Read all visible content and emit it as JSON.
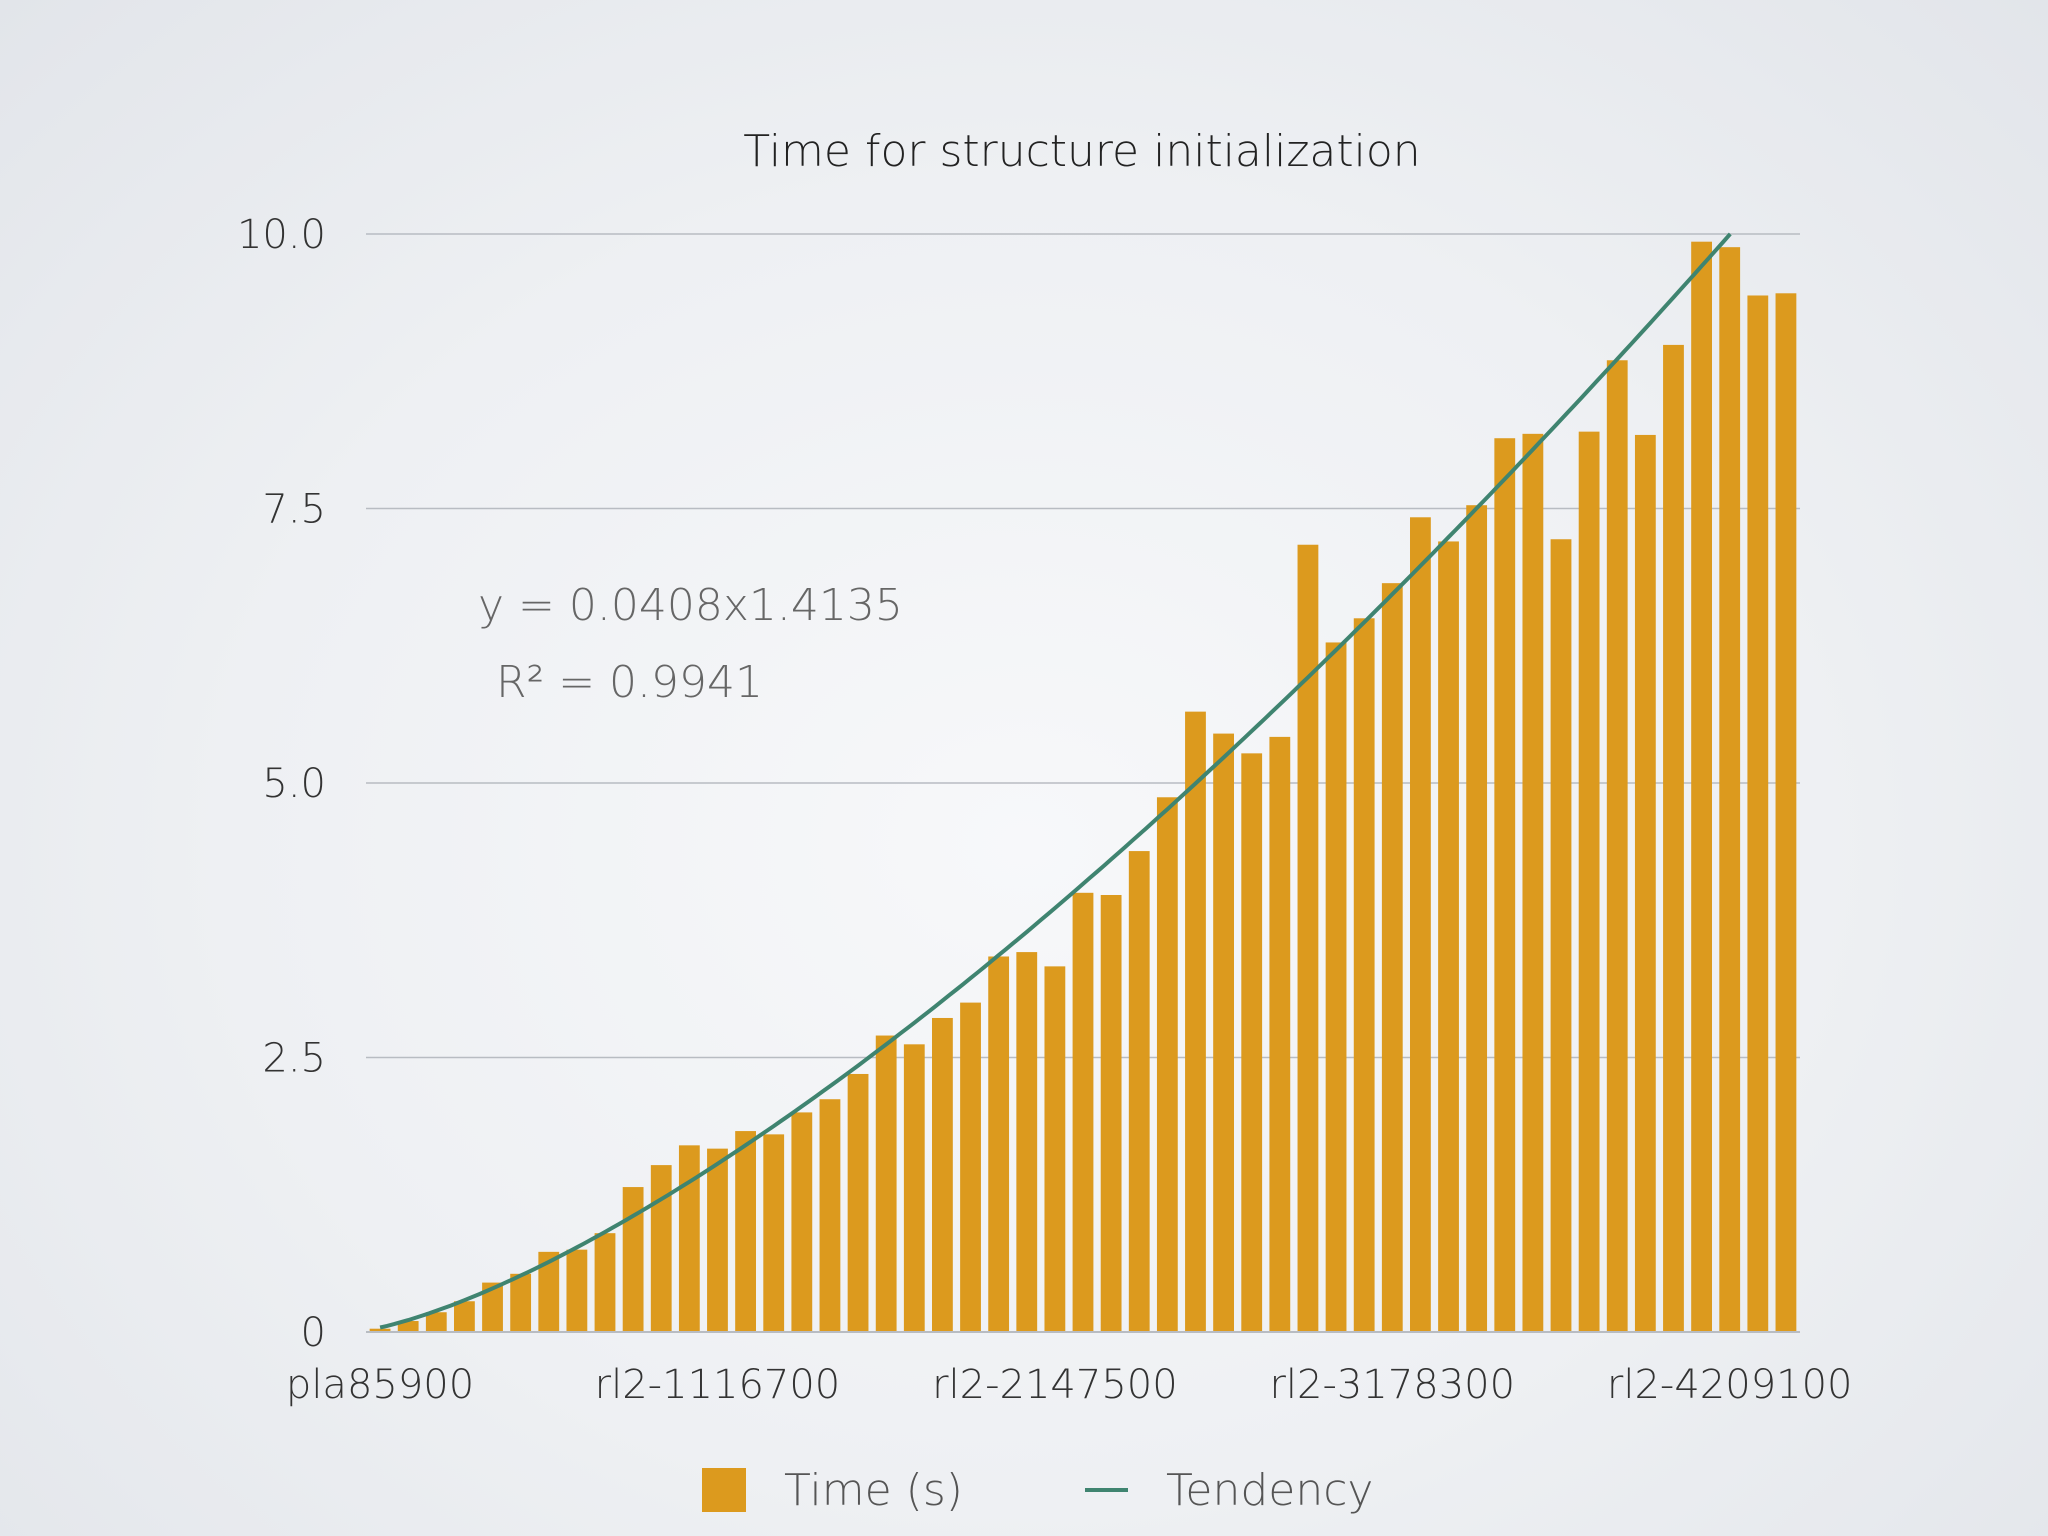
{
  "chart_data": {
    "type": "bar",
    "title": "Time for structure initialization",
    "xlabel": "",
    "ylabel": "",
    "ylim": [
      0,
      10
    ],
    "yticks": [
      0,
      2.5,
      5,
      7.5,
      10
    ],
    "ytick_labels": [
      "0",
      "2.5",
      "5.0",
      "7.5",
      "10.0"
    ],
    "xtick_labels": [
      "pla85900",
      "rl2-1116700",
      "rl2-2147500",
      "rl2-3178300",
      "rl2-4209100"
    ],
    "xtick_indices": [
      0,
      12,
      24,
      36,
      48
    ],
    "grid": true,
    "legend_placement": "bottom",
    "bar_color": "#DC9A1E",
    "line_color": "#3F8470",
    "series": [
      {
        "name": "Time (s)",
        "type": "bar",
        "values": [
          0.03,
          0.1,
          0.18,
          0.28,
          0.45,
          0.53,
          0.73,
          0.75,
          0.9,
          1.32,
          1.52,
          1.7,
          1.67,
          1.83,
          1.8,
          2.0,
          2.12,
          2.35,
          2.7,
          2.62,
          2.86,
          3.0,
          3.42,
          3.46,
          3.33,
          4.0,
          3.98,
          4.38,
          4.87,
          5.65,
          5.45,
          5.27,
          5.42,
          7.17,
          6.28,
          6.5,
          6.82,
          7.42,
          7.2,
          7.53,
          8.14,
          8.18,
          7.22,
          8.2,
          8.85,
          8.17,
          8.99,
          9.93,
          9.88,
          9.44,
          9.46
        ]
      },
      {
        "name": "Tendency",
        "type": "line",
        "equation": {
          "a": 0.0408,
          "b": 1.4135
        }
      }
    ],
    "annotations": {
      "equation": "y = 0.0408x1.4135",
      "r_squared": "R² = 0.9941"
    }
  }
}
